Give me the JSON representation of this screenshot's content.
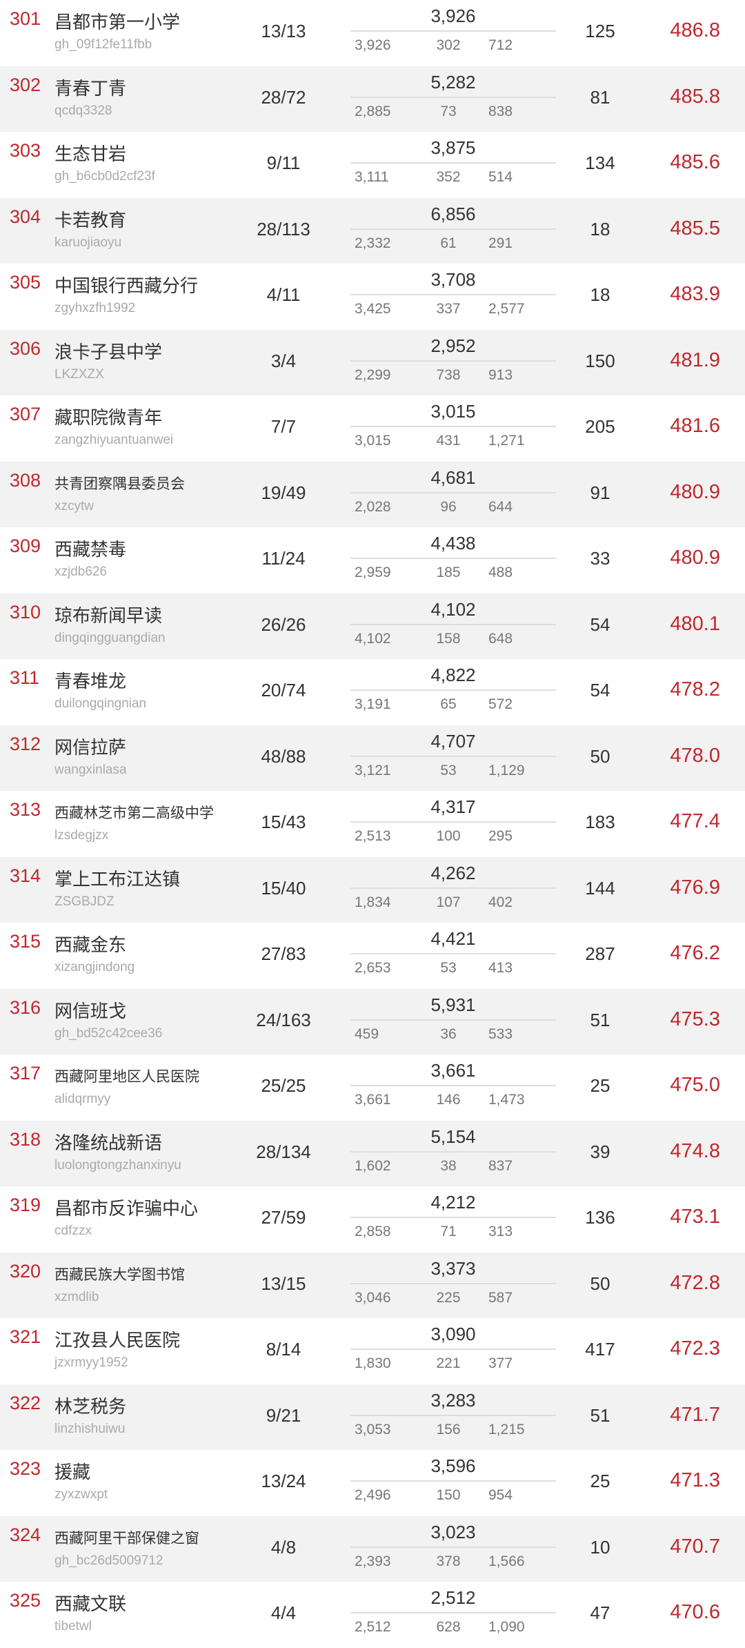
{
  "accent_color": "#c0272d",
  "rows": [
    {
      "rank": "301",
      "name": "昌都市第一小学",
      "id": "gh_09f12fe11fbb",
      "frac": "13/13",
      "total": "3,926",
      "b1": "3,926",
      "b2": "302",
      "b3": "712",
      "count": "125",
      "score": "486.8"
    },
    {
      "rank": "302",
      "name": "青春丁青",
      "id": "qcdq3328",
      "frac": "28/72",
      "total": "5,282",
      "b1": "2,885",
      "b2": "73",
      "b3": "838",
      "count": "81",
      "score": "485.8"
    },
    {
      "rank": "303",
      "name": "生态甘岩",
      "id": "gh_b6cb0d2cf23f",
      "frac": "9/11",
      "total": "3,875",
      "b1": "3,111",
      "b2": "352",
      "b3": "514",
      "count": "134",
      "score": "485.6"
    },
    {
      "rank": "304",
      "name": "卡若教育",
      "id": "karuojiaoyu",
      "frac": "28/113",
      "total": "6,856",
      "b1": "2,332",
      "b2": "61",
      "b3": "291",
      "count": "18",
      "score": "485.5"
    },
    {
      "rank": "305",
      "name": "中国银行西藏分行",
      "id": "zgyhxzfh1992",
      "frac": "4/11",
      "total": "3,708",
      "b1": "3,425",
      "b2": "337",
      "b3": "2,577",
      "count": "18",
      "score": "483.9"
    },
    {
      "rank": "306",
      "name": "浪卡子县中学",
      "id": "LKZXZX",
      "frac": "3/4",
      "total": "2,952",
      "b1": "2,299",
      "b2": "738",
      "b3": "913",
      "count": "150",
      "score": "481.9"
    },
    {
      "rank": "307",
      "name": "藏职院微青年",
      "id": "zangzhiyuantuanwei",
      "frac": "7/7",
      "total": "3,015",
      "b1": "3,015",
      "b2": "431",
      "b3": "1,271",
      "count": "205",
      "score": "481.6"
    },
    {
      "rank": "308",
      "name": "共青团察隅县委员会",
      "id": "xzcytw",
      "frac": "19/49",
      "total": "4,681",
      "b1": "2,028",
      "b2": "96",
      "b3": "644",
      "count": "91",
      "score": "480.9"
    },
    {
      "rank": "309",
      "name": "西藏禁毒",
      "id": "xzjdb626",
      "frac": "11/24",
      "total": "4,438",
      "b1": "2,959",
      "b2": "185",
      "b3": "488",
      "count": "33",
      "score": "480.9"
    },
    {
      "rank": "310",
      "name": "琼布新闻早读",
      "id": "dingqingguangdian",
      "frac": "26/26",
      "total": "4,102",
      "b1": "4,102",
      "b2": "158",
      "b3": "648",
      "count": "54",
      "score": "480.1"
    },
    {
      "rank": "311",
      "name": "青春堆龙",
      "id": "duilongqingnian",
      "frac": "20/74",
      "total": "4,822",
      "b1": "3,191",
      "b2": "65",
      "b3": "572",
      "count": "54",
      "score": "478.2"
    },
    {
      "rank": "312",
      "name": "网信拉萨",
      "id": "wangxinlasa",
      "frac": "48/88",
      "total": "4,707",
      "b1": "3,121",
      "b2": "53",
      "b3": "1,129",
      "count": "50",
      "score": "478.0"
    },
    {
      "rank": "313",
      "name": "西藏林芝市第二高级中学",
      "id": "lzsdegjzx",
      "frac": "15/43",
      "total": "4,317",
      "b1": "2,513",
      "b2": "100",
      "b3": "295",
      "count": "183",
      "score": "477.4"
    },
    {
      "rank": "314",
      "name": "掌上工布江达镇",
      "id": "ZSGBJDZ",
      "frac": "15/40",
      "total": "4,262",
      "b1": "1,834",
      "b2": "107",
      "b3": "402",
      "count": "144",
      "score": "476.9"
    },
    {
      "rank": "315",
      "name": "西藏金东",
      "id": "xizangjindong",
      "frac": "27/83",
      "total": "4,421",
      "b1": "2,653",
      "b2": "53",
      "b3": "413",
      "count": "287",
      "score": "476.2"
    },
    {
      "rank": "316",
      "name": "网信班戈",
      "id": "gh_bd52c42cee36",
      "frac": "24/163",
      "total": "5,931",
      "b1": "459",
      "b2": "36",
      "b3": "533",
      "count": "51",
      "score": "475.3"
    },
    {
      "rank": "317",
      "name": "西藏阿里地区人民医院",
      "id": "alidqrmyy",
      "frac": "25/25",
      "total": "3,661",
      "b1": "3,661",
      "b2": "146",
      "b3": "1,473",
      "count": "25",
      "score": "475.0"
    },
    {
      "rank": "318",
      "name": "洛隆统战新语",
      "id": "luolongtongzhanxinyu",
      "frac": "28/134",
      "total": "5,154",
      "b1": "1,602",
      "b2": "38",
      "b3": "837",
      "count": "39",
      "score": "474.8"
    },
    {
      "rank": "319",
      "name": "昌都市反诈骗中心",
      "id": "cdfzzx",
      "frac": "27/59",
      "total": "4,212",
      "b1": "2,858",
      "b2": "71",
      "b3": "313",
      "count": "136",
      "score": "473.1"
    },
    {
      "rank": "320",
      "name": "西藏民族大学图书馆",
      "id": "xzmdlib",
      "frac": "13/15",
      "total": "3,373",
      "b1": "3,046",
      "b2": "225",
      "b3": "587",
      "count": "50",
      "score": "472.8"
    },
    {
      "rank": "321",
      "name": "江孜县人民医院",
      "id": "jzxrmyy1952",
      "frac": "8/14",
      "total": "3,090",
      "b1": "1,830",
      "b2": "221",
      "b3": "377",
      "count": "417",
      "score": "472.3"
    },
    {
      "rank": "322",
      "name": "林芝税务",
      "id": "linzhishuiwu",
      "frac": "9/21",
      "total": "3,283",
      "b1": "3,053",
      "b2": "156",
      "b3": "1,215",
      "count": "51",
      "score": "471.7"
    },
    {
      "rank": "323",
      "name": "援藏",
      "id": "zyxzwxpt",
      "frac": "13/24",
      "total": "3,596",
      "b1": "2,496",
      "b2": "150",
      "b3": "954",
      "count": "25",
      "score": "471.3"
    },
    {
      "rank": "324",
      "name": "西藏阿里干部保健之窗",
      "id": "gh_bc26d5009712",
      "frac": "4/8",
      "total": "3,023",
      "b1": "2,393",
      "b2": "378",
      "b3": "1,566",
      "count": "10",
      "score": "470.7"
    },
    {
      "rank": "325",
      "name": "西藏文联",
      "id": "tibetwl",
      "frac": "4/4",
      "total": "2,512",
      "b1": "2,512",
      "b2": "628",
      "b3": "1,090",
      "count": "47",
      "score": "470.6"
    }
  ]
}
